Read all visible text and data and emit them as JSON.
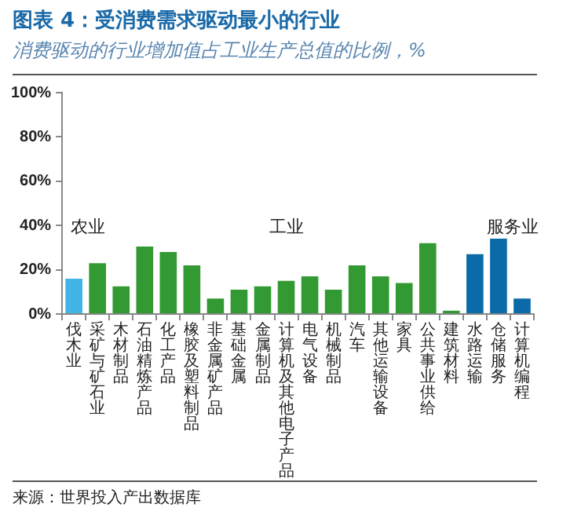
{
  "chart_data": {
    "type": "bar",
    "title": "图表 4：受消费需求驱动最小的行业",
    "subtitle": "消费驱动的行业增加值占工业生产总值的比例，%",
    "categories": [
      "伐木业",
      "采矿与矿石业",
      "木材制品",
      "石油精炼产品",
      "化工产品",
      "橡胶及塑料制品",
      "非金属矿产品",
      "基础金属",
      "金属制品",
      "计算机及其他电子产品",
      "电气设备",
      "机械制品",
      "汽车",
      "其他运输设备",
      "家具",
      "公共事业供给",
      "建筑材料",
      "水路运输",
      "仓储服务",
      "计算机编程"
    ],
    "values": [
      16,
      23,
      12.5,
      30.5,
      28,
      22,
      7,
      11,
      12.5,
      15,
      17,
      11,
      22,
      17,
      14,
      32,
      1.5,
      27,
      34,
      7
    ],
    "colors": [
      "#41b6e6",
      "#339933",
      "#339933",
      "#339933",
      "#339933",
      "#339933",
      "#339933",
      "#339933",
      "#339933",
      "#339933",
      "#339933",
      "#339933",
      "#339933",
      "#339933",
      "#339933",
      "#339933",
      "#339933",
      "#0b6aa8",
      "#0b6aa8",
      "#0b6aa8"
    ],
    "ylim": [
      0,
      100
    ],
    "yticks": [
      {
        "value": 0,
        "label": "0%"
      },
      {
        "value": 20,
        "label": "20%"
      },
      {
        "value": 40,
        "label": "40%"
      },
      {
        "value": 60,
        "label": "60%"
      },
      {
        "value": 80,
        "label": "80%"
      },
      {
        "value": 100,
        "label": "100%"
      }
    ],
    "grid": false,
    "annotations": [
      "农业",
      "工业",
      "服务业",
      "来源：世界投入产出数据库"
    ]
  }
}
